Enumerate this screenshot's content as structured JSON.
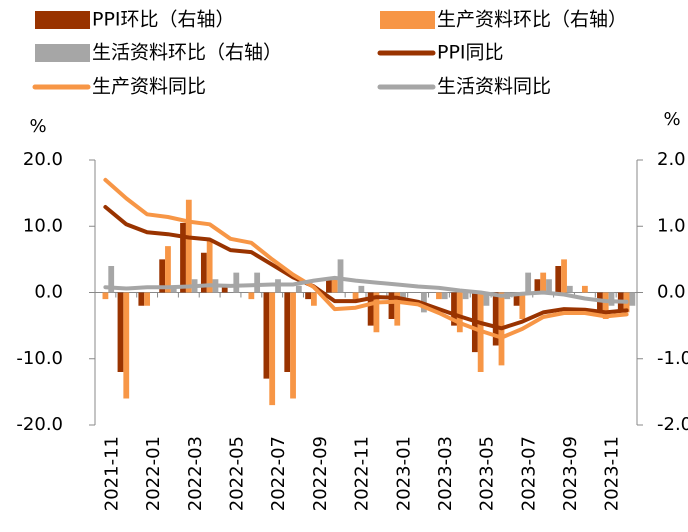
{
  "chart_data": {
    "type": "combo",
    "ylabel": "%",
    "y2label": "%",
    "categories": [
      "2021-11",
      null,
      "2022-01",
      null,
      "2022-03",
      null,
      "2022-05",
      null,
      "2022-07",
      null,
      "2022-09",
      null,
      "2022-11",
      null,
      "2023-01",
      null,
      "2023-03",
      null,
      "2023-05",
      null,
      "2023-07",
      null,
      "2023-09",
      null,
      "2023-11",
      null
    ],
    "ylim": [
      -20,
      20
    ],
    "yticks": [
      {
        "value": -20,
        "label": "-20.0"
      },
      {
        "value": -10,
        "label": "-10.0"
      },
      {
        "value": 0,
        "label": "0.0"
      },
      {
        "value": 10,
        "label": "10.0"
      },
      {
        "value": 20,
        "label": "20.0"
      }
    ],
    "y2lim": [
      -2,
      2
    ],
    "y2ticks": [
      {
        "value": -2,
        "label": "-2.0"
      },
      {
        "value": -1,
        "label": "-1.0"
      },
      {
        "value": 0,
        "label": "0.0"
      },
      {
        "value": 1,
        "label": "1.0"
      },
      {
        "value": 2,
        "label": "2.0"
      }
    ],
    "series": [
      {
        "name": "PPI环比（右轴）",
        "type": "bar",
        "axis": "y2",
        "color": "#993300",
        "values": [
          0,
          -1.2,
          -0.2,
          0.5,
          1.05,
          0.6,
          0.1,
          0,
          -1.3,
          -1.2,
          -0.1,
          0.2,
          0,
          -0.5,
          -0.4,
          0,
          0,
          -0.5,
          -0.9,
          -0.8,
          -0.2,
          0.2,
          0.4,
          0,
          -0.3,
          -0.3
        ]
      },
      {
        "name": "生产资料环比（右轴）",
        "type": "bar",
        "axis": "y2",
        "color": "#F79646",
        "values": [
          -0.1,
          -1.6,
          -0.2,
          0.7,
          1.4,
          0.8,
          0,
          -0.1,
          -1.7,
          -1.6,
          -0.2,
          0.2,
          -0.1,
          -0.6,
          -0.5,
          0,
          -0.1,
          -0.6,
          -1.2,
          -1.1,
          -0.4,
          0.3,
          0.5,
          0.1,
          -0.4,
          -0.3
        ]
      },
      {
        "name": "生活资料环比（右轴）",
        "type": "bar",
        "axis": "y2",
        "color": "#A6A6A6",
        "values": [
          0.4,
          0,
          0,
          0.1,
          0.2,
          0.2,
          0.3,
          0.3,
          0.2,
          0.1,
          0,
          0.5,
          0.1,
          0,
          -0.1,
          -0.3,
          -0.1,
          -0.1,
          -0.2,
          -0.1,
          0.3,
          0.2,
          0.1,
          0,
          -0.2,
          -0.2
        ]
      },
      {
        "name": "PPI同比",
        "type": "line",
        "color": "#993300",
        "values": [
          12.9,
          10.3,
          9.1,
          8.8,
          8.3,
          8.0,
          6.4,
          6.1,
          4.2,
          2.3,
          0.9,
          -1.3,
          -1.3,
          -0.7,
          -0.8,
          -1.4,
          -2.5,
          -3.6,
          -4.6,
          -5.4,
          -4.4,
          -3.0,
          -2.5,
          -2.6,
          -3.0,
          -2.7
        ]
      },
      {
        "name": "生产资料同比",
        "type": "line",
        "color": "#F79646",
        "values": [
          17.0,
          14.2,
          11.8,
          11.4,
          10.7,
          10.3,
          8.1,
          7.5,
          5.0,
          2.7,
          0.8,
          -2.5,
          -2.3,
          -1.5,
          -1.4,
          -1.8,
          -3.1,
          -4.6,
          -5.8,
          -6.8,
          -5.5,
          -3.7,
          -3.1,
          -3.1,
          -3.6,
          -3.3
        ]
      },
      {
        "name": "生活资料同比",
        "type": "line",
        "color": "#A6A6A6",
        "values": [
          0.8,
          0.6,
          0.8,
          0.8,
          0.9,
          1.1,
          1.0,
          1.1,
          1.2,
          1.2,
          1.8,
          2.2,
          1.8,
          1.5,
          1.2,
          0.9,
          0.7,
          0.3,
          0.0,
          -0.5,
          -0.2,
          0.0,
          -0.3,
          -0.9,
          -1.3,
          -1.4
        ]
      }
    ]
  }
}
